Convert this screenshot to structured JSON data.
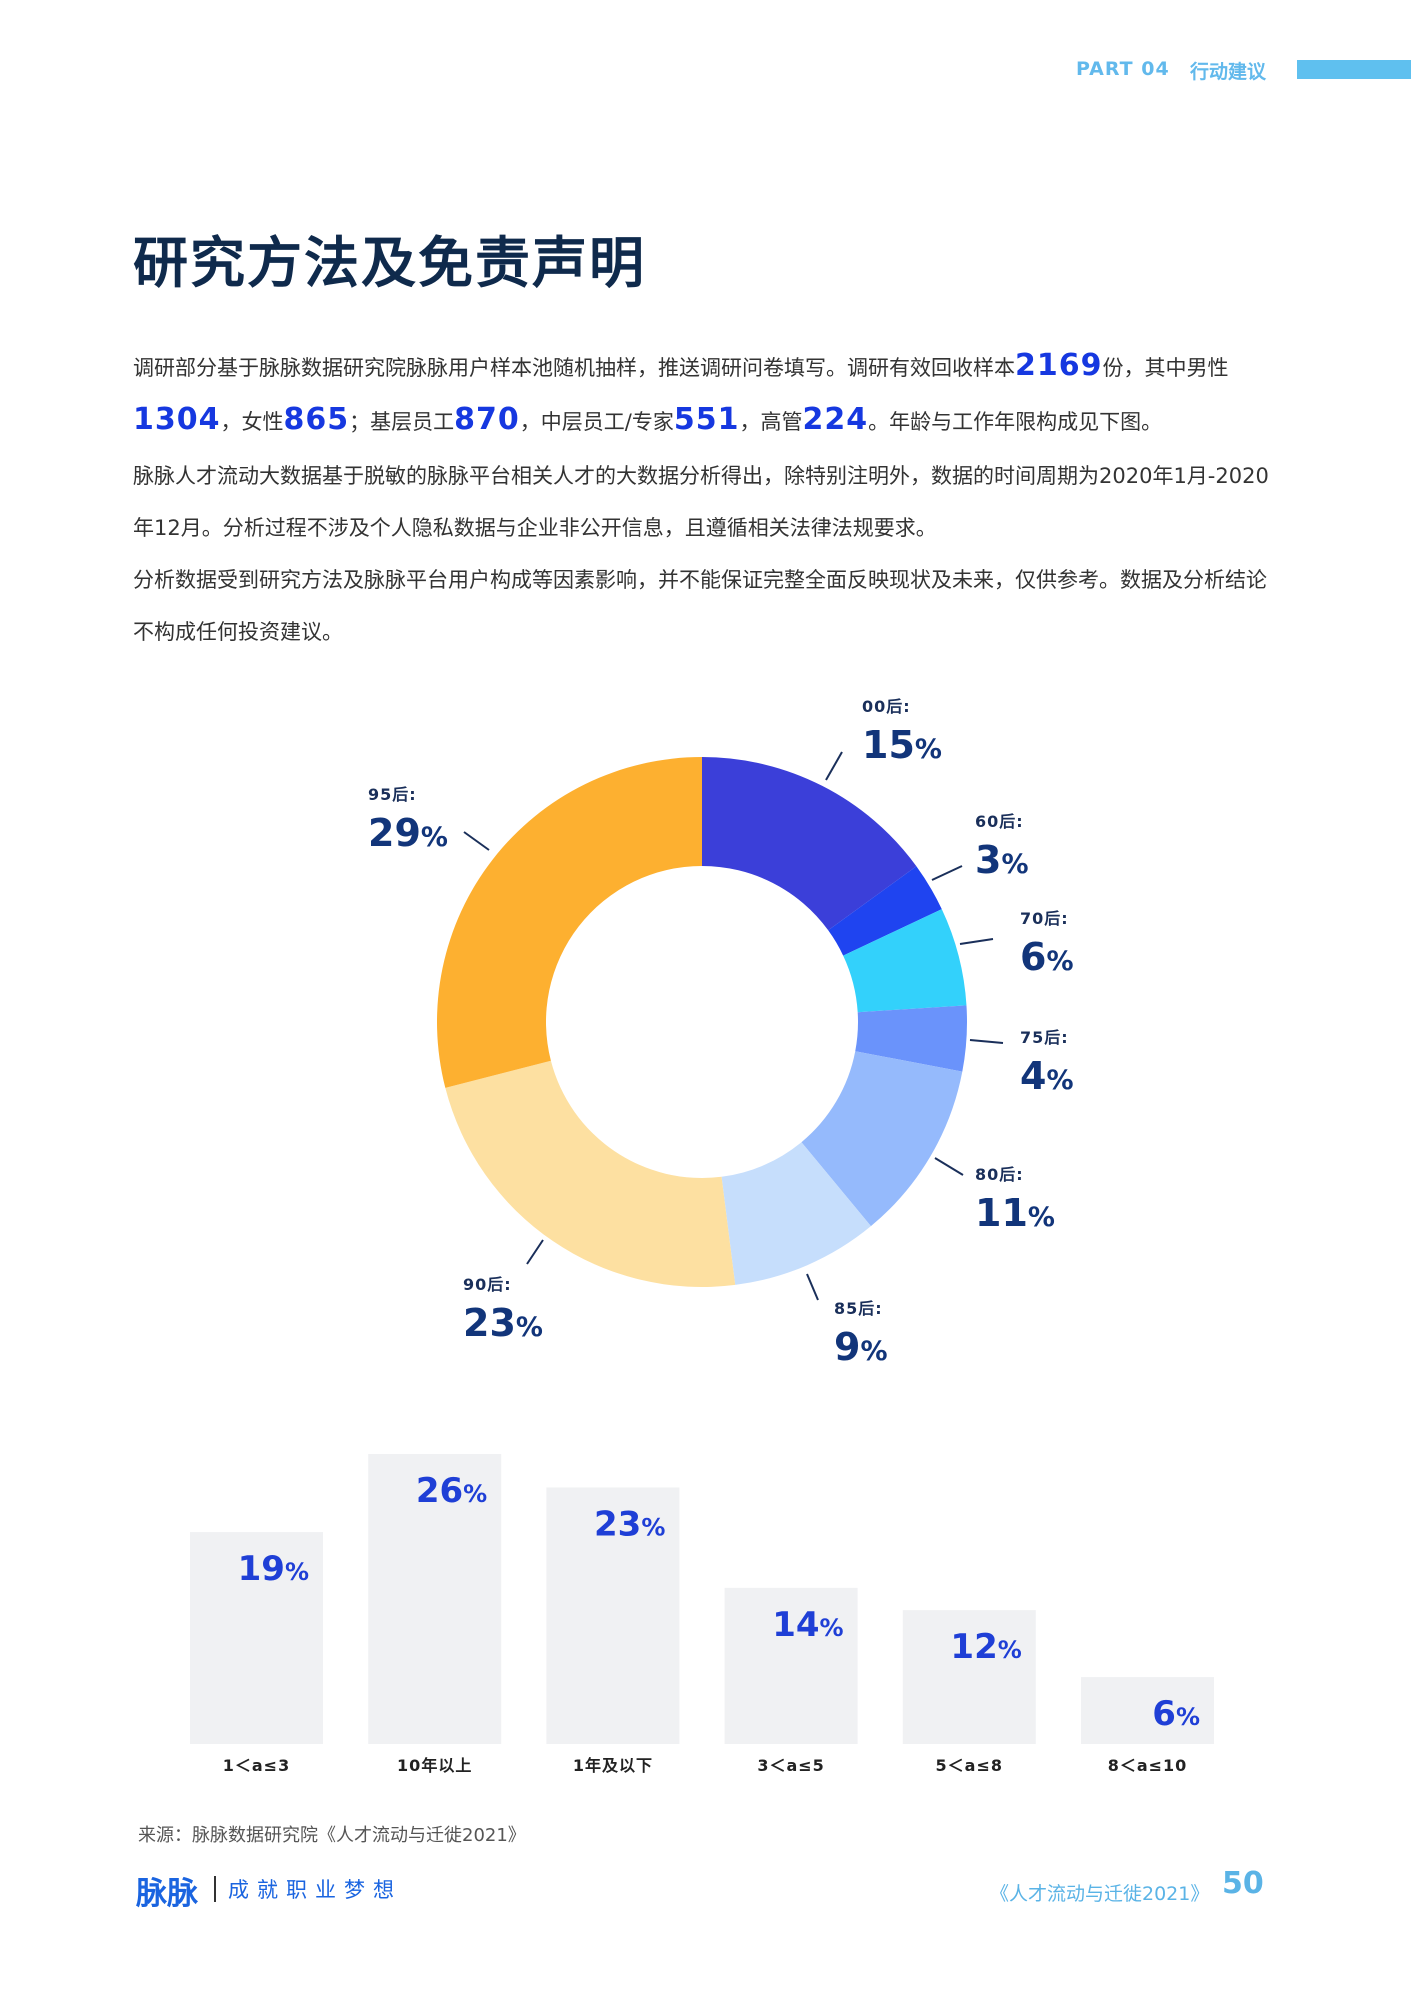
{
  "header": {
    "part": "PART 04",
    "section": "行动建议"
  },
  "title": "研究方法及免责声明",
  "paragraphs": {
    "p1": {
      "a": "调研部分基于脉脉数据研究院脉脉用户样本池随机抽样，推送调研问卷填写。调研有效回收样本",
      "total": "2169",
      "b": "份，其中男性",
      "male": "1304",
      "c": "，女性",
      "female": "865",
      "d": "；基层员工",
      "junior": "870",
      "e": "，中层员工/专家",
      "middle": "551",
      "f": "，高管",
      "senior": "224",
      "g": "。年龄与工作年限构成见下图。"
    },
    "p2": "脉脉人才流动大数据基于脱敏的脉脉平台相关人才的大数据分析得出，除特别注明外，数据的时间周期为2020年1月-2020年12月。分析过程不涉及个人隐私数据与企业非公开信息，且遵循相关法律法规要求。",
    "p3": "分析数据受到研究方法及脉脉平台用户构成等因素影响，并不能保证完整全面反映现状及未来，仅供参考。数据及分析结论不构成任何投资建议。"
  },
  "chart_data": [
    {
      "type": "pie",
      "donut": true,
      "slices": [
        {
          "label": "00后:",
          "value": 15,
          "color": "#3b3fd9"
        },
        {
          "label": "60后:",
          "value": 3,
          "color": "#1f44f0"
        },
        {
          "label": "70后:",
          "value": 6,
          "color": "#33d1fb"
        },
        {
          "label": "75后:",
          "value": 4,
          "color": "#6a93fb"
        },
        {
          "label": "80后:",
          "value": 11,
          "color": "#95bafc"
        },
        {
          "label": "85后:",
          "value": 9,
          "color": "#c6defc"
        },
        {
          "label": "90后:",
          "value": 23,
          "color": "#fde0a1"
        },
        {
          "label": "95后:",
          "value": 29,
          "color": "#fdb030"
        }
      ],
      "unit": "%"
    },
    {
      "type": "bar",
      "categories": [
        "1＜a≤3",
        "10年以上",
        "1年及以下",
        "3＜a≤5",
        "5＜a≤8",
        "8＜a≤10"
      ],
      "values": [
        19,
        26,
        23,
        14,
        12,
        6
      ],
      "unit": "%",
      "bar_color": "#f0f1f3",
      "label_color": "#1f3fd6"
    }
  ],
  "source": "来源：脉脉数据研究院《人才流动与迁徙2021》",
  "footer": {
    "logo": "脉脉",
    "slogan": "成就职业梦想",
    "book": "《人才流动与迁徙2021》",
    "page": "50"
  }
}
